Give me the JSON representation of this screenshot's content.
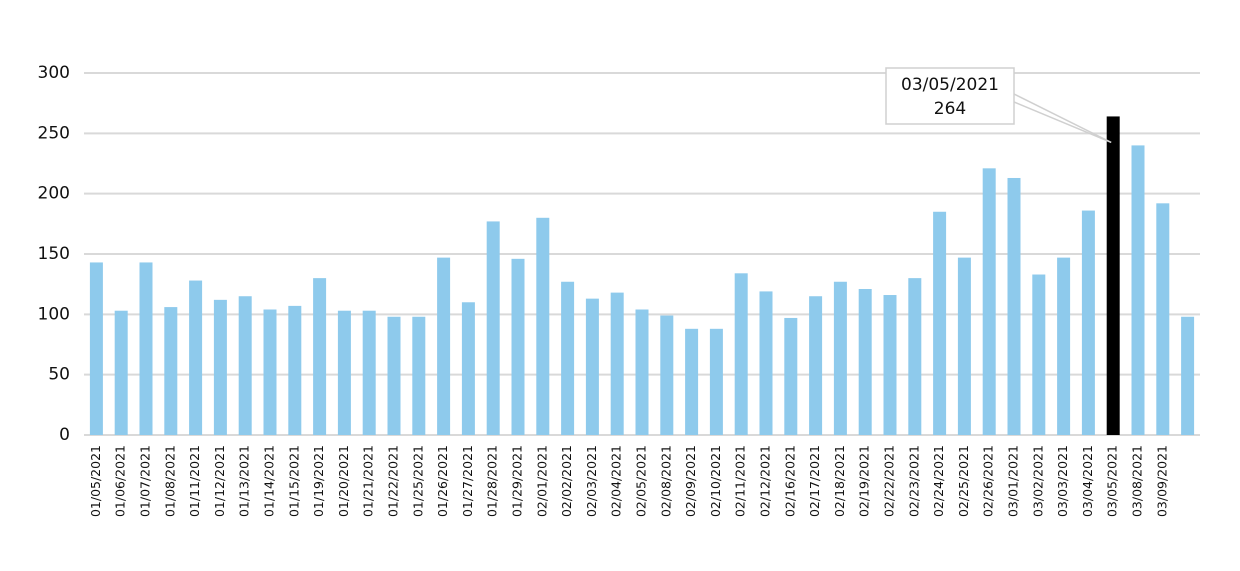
{
  "chart_data": {
    "type": "bar",
    "categories": [
      "01/05/2021",
      "01/06/2021",
      "01/07/2021",
      "01/08/2021",
      "01/11/2021",
      "01/12/2021",
      "01/13/2021",
      "01/14/2021",
      "01/15/2021",
      "01/19/2021",
      "01/20/2021",
      "01/21/2021",
      "01/22/2021",
      "01/25/2021",
      "01/26/2021",
      "01/27/2021",
      "01/28/2021",
      "01/29/2021",
      "02/01/2021",
      "02/02/2021",
      "02/03/2021",
      "02/04/2021",
      "02/05/2021",
      "02/08/2021",
      "02/09/2021",
      "02/10/2021",
      "02/11/2021",
      "02/12/2021",
      "02/16/2021",
      "02/17/2021",
      "02/18/2021",
      "02/19/2021",
      "02/22/2021",
      "02/23/2021",
      "02/24/2021",
      "02/25/2021",
      "02/26/2021",
      "03/01/2021",
      "03/02/2021",
      "03/03/2021",
      "03/04/2021",
      "03/05/2021",
      "03/08/2021",
      "03/09/2021",
      null
    ],
    "values": [
      143,
      103,
      143,
      106,
      128,
      112,
      115,
      104,
      107,
      130,
      103,
      103,
      98,
      98,
      147,
      110,
      177,
      146,
      180,
      127,
      113,
      118,
      104,
      99,
      88,
      88,
      134,
      119,
      97,
      115,
      127,
      121,
      116,
      130,
      185,
      147,
      221,
      213,
      133,
      147,
      186,
      264,
      240,
      192,
      98
    ],
    "color": "#8ecaec",
    "highlight_index": 41,
    "highlight_color": "#000000",
    "ylim": [
      0,
      300
    ],
    "yticks": [
      0,
      50,
      100,
      150,
      200,
      250,
      300
    ],
    "grid": true
  }
}
